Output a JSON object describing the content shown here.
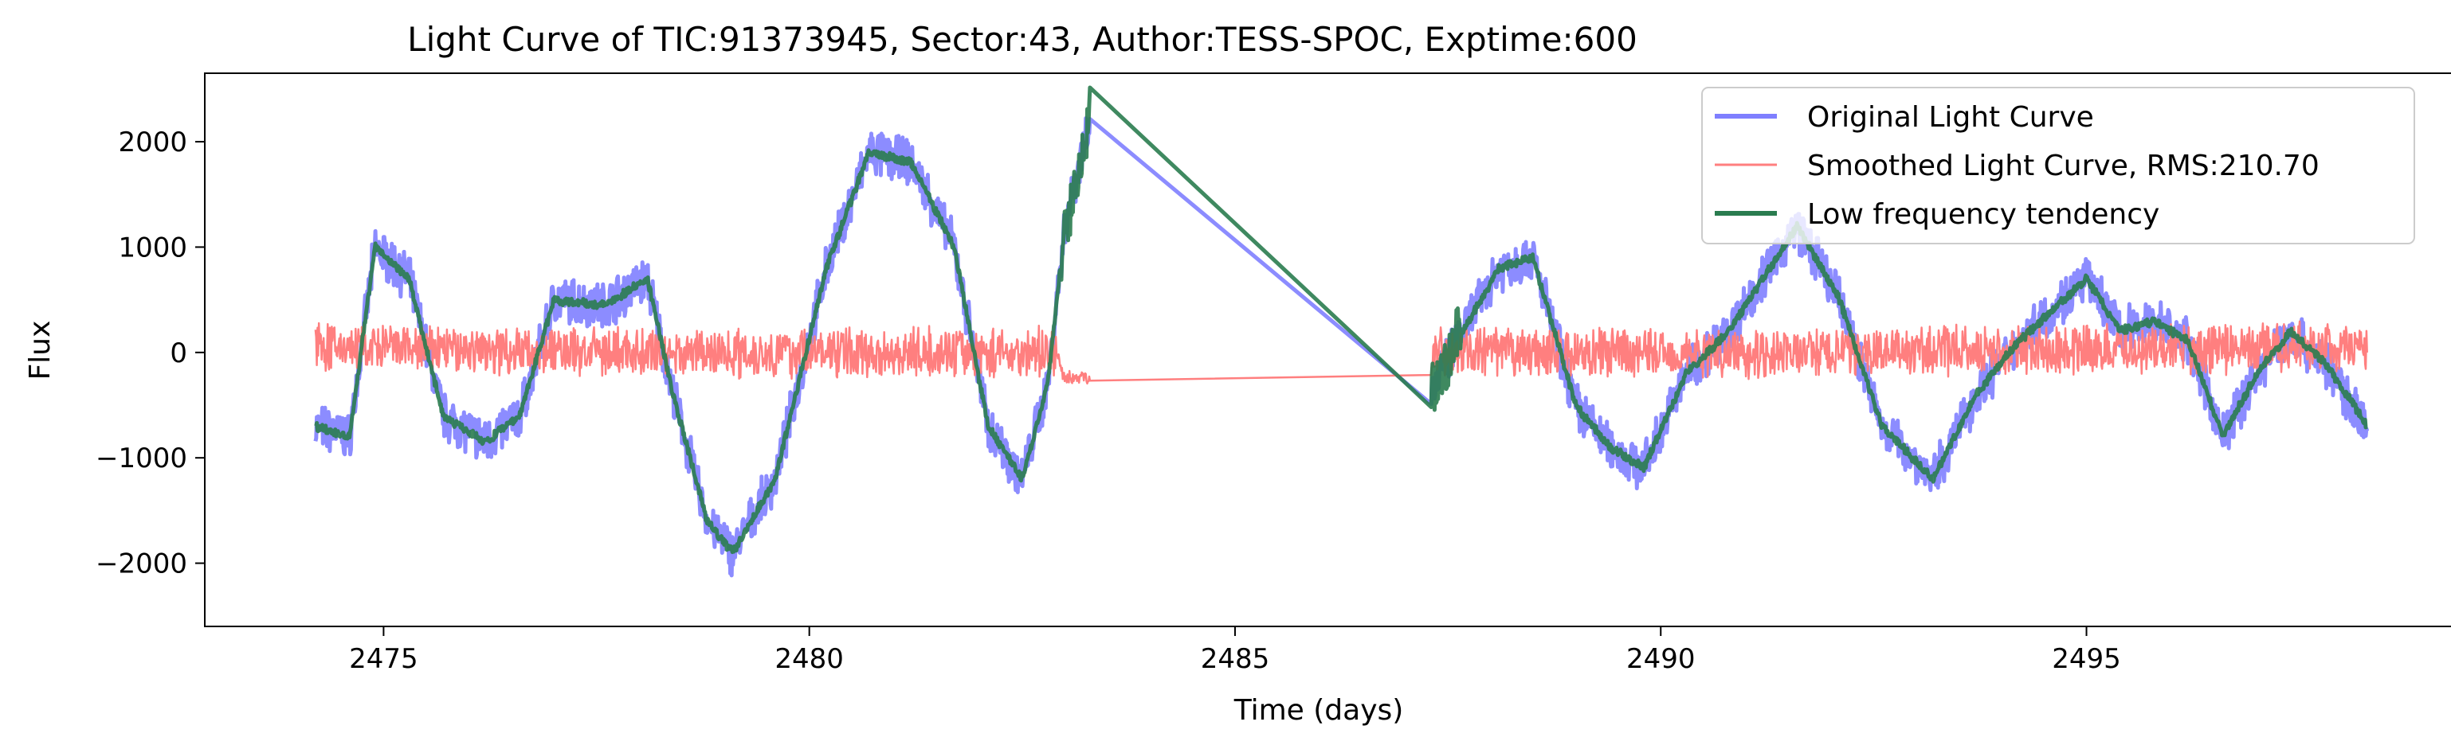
{
  "chart_data": {
    "type": "line",
    "title": "Light Curve of TIC:91373945, Sector:43, Author:TESS-SPOC, Exptime:600",
    "xlabel": "Time (days)",
    "ylabel": "Flux",
    "xlim": [
      2472.9,
      2499.3
    ],
    "ylim": [
      -2600,
      2650
    ],
    "grid": false,
    "legend_position": "top-right",
    "x_ticks": [
      2475,
      2480,
      2485,
      2490,
      2495
    ],
    "y_ticks": [
      -2000,
      -1000,
      0,
      1000,
      2000
    ],
    "y_tick_labels": [
      "−2000",
      "−1000",
      "0",
      "1000",
      "2000"
    ],
    "gap": [
      2483.3,
      2487.3
    ],
    "time_range": [
      2474.2,
      2498.3
    ],
    "series": [
      {
        "name": "Original Light Curve",
        "color": "#7f7fff",
        "noise_amplitude": 190,
        "points": [
          [
            2474.2,
            -700
          ],
          [
            2474.6,
            -800
          ],
          [
            2474.9,
            1000
          ],
          [
            2475.3,
            700
          ],
          [
            2475.7,
            -600
          ],
          [
            2476.2,
            -850
          ],
          [
            2476.6,
            -600
          ],
          [
            2477.0,
            500
          ],
          [
            2477.6,
            450
          ],
          [
            2478.1,
            700
          ],
          [
            2478.4,
            -400
          ],
          [
            2478.8,
            -1600
          ],
          [
            2479.1,
            -1900
          ],
          [
            2479.6,
            -1200
          ],
          [
            2480.2,
            800
          ],
          [
            2480.7,
            1900
          ],
          [
            2481.2,
            1800
          ],
          [
            2481.7,
            1000
          ],
          [
            2482.1,
            -700
          ],
          [
            2482.5,
            -1200
          ],
          [
            2482.8,
            -300
          ],
          [
            2483.0,
            1200
          ],
          [
            2483.3,
            2250
          ],
          [
            2487.3,
            -400
          ],
          [
            2487.6,
            100
          ],
          [
            2488.1,
            800
          ],
          [
            2488.5,
            900
          ],
          [
            2489.0,
            -500
          ],
          [
            2489.4,
            -900
          ],
          [
            2489.8,
            -1100
          ],
          [
            2490.3,
            -200
          ],
          [
            2490.8,
            200
          ],
          [
            2491.2,
            700
          ],
          [
            2491.6,
            1200
          ],
          [
            2492.1,
            500
          ],
          [
            2492.6,
            -700
          ],
          [
            2493.2,
            -1200
          ],
          [
            2493.7,
            -400
          ],
          [
            2494.2,
            100
          ],
          [
            2494.6,
            400
          ],
          [
            2495.0,
            700
          ],
          [
            2495.4,
            200
          ],
          [
            2495.8,
            300
          ],
          [
            2496.2,
            100
          ],
          [
            2496.6,
            -800
          ],
          [
            2497.0,
            -200
          ],
          [
            2497.4,
            200
          ],
          [
            2497.8,
            -100
          ],
          [
            2498.3,
            -700
          ]
        ]
      },
      {
        "name": "Smoothed Light Curve, RMS:210.70",
        "color": "#ff7f7f",
        "noise_amplitude": 200,
        "rms": 210.7,
        "points": [
          [
            2474.2,
            50
          ],
          [
            2478.0,
            0
          ],
          [
            2482.9,
            0
          ],
          [
            2483.0,
            -250
          ],
          [
            2487.3,
            0
          ],
          [
            2492.0,
            0
          ],
          [
            2498.3,
            50
          ]
        ]
      },
      {
        "name": "Low frequency tendency",
        "color": "#2a7c4f",
        "noise_amplitude": 0,
        "points": [
          [
            2474.2,
            -700
          ],
          [
            2474.6,
            -800
          ],
          [
            2474.9,
            1000
          ],
          [
            2475.3,
            700
          ],
          [
            2475.7,
            -600
          ],
          [
            2476.2,
            -850
          ],
          [
            2476.6,
            -600
          ],
          [
            2477.0,
            500
          ],
          [
            2477.6,
            450
          ],
          [
            2478.1,
            700
          ],
          [
            2478.4,
            -400
          ],
          [
            2478.8,
            -1600
          ],
          [
            2479.1,
            -1900
          ],
          [
            2479.6,
            -1200
          ],
          [
            2480.2,
            800
          ],
          [
            2480.7,
            1900
          ],
          [
            2481.2,
            1800
          ],
          [
            2481.7,
            1000
          ],
          [
            2482.1,
            -700
          ],
          [
            2482.5,
            -1200
          ],
          [
            2482.8,
            -300
          ],
          [
            2483.0,
            1200
          ],
          [
            2483.3,
            2250
          ],
          [
            2487.3,
            -400
          ],
          [
            2487.6,
            100
          ],
          [
            2488.1,
            800
          ],
          [
            2488.5,
            900
          ],
          [
            2489.0,
            -500
          ],
          [
            2489.4,
            -900
          ],
          [
            2489.8,
            -1100
          ],
          [
            2490.3,
            -200
          ],
          [
            2490.8,
            200
          ],
          [
            2491.2,
            700
          ],
          [
            2491.6,
            1200
          ],
          [
            2492.1,
            500
          ],
          [
            2492.6,
            -700
          ],
          [
            2493.2,
            -1200
          ],
          [
            2493.7,
            -400
          ],
          [
            2494.2,
            100
          ],
          [
            2494.6,
            400
          ],
          [
            2495.0,
            700
          ],
          [
            2495.4,
            200
          ],
          [
            2495.8,
            300
          ],
          [
            2496.2,
            100
          ],
          [
            2496.6,
            -800
          ],
          [
            2497.0,
            -200
          ],
          [
            2497.4,
            200
          ],
          [
            2497.8,
            -100
          ],
          [
            2498.3,
            -700
          ]
        ]
      }
    ]
  }
}
